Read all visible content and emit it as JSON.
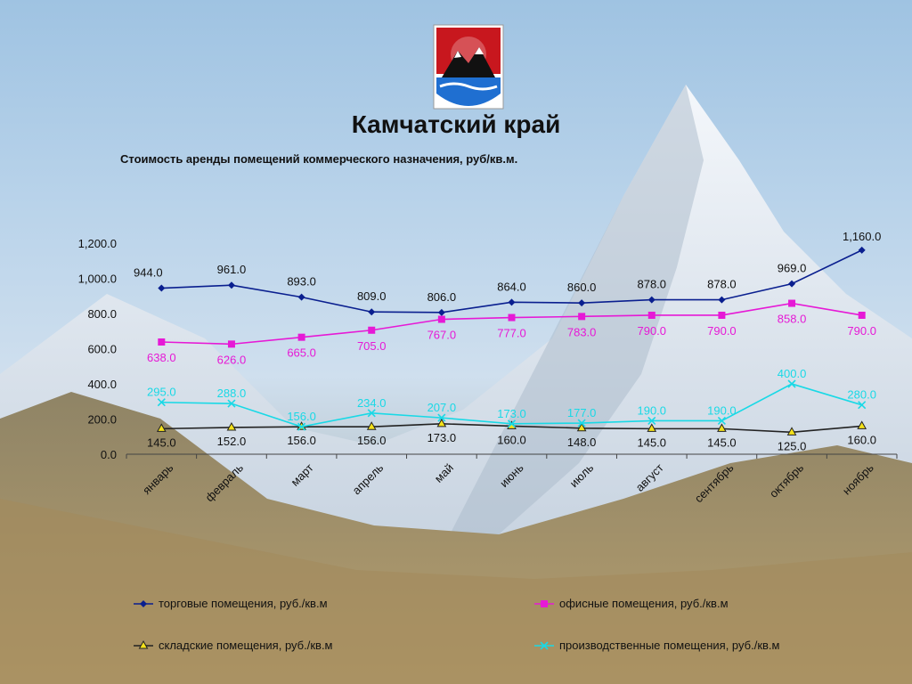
{
  "title": "Камчатский край",
  "chart_data": {
    "type": "line",
    "title": "Стоимость аренды помещений коммерческого назначения, руб/кв.м.",
    "categories": [
      "январь",
      "февраль",
      "март",
      "апрель",
      "май",
      "июнь",
      "июль",
      "август",
      "сентябрь",
      "октябрь",
      "ноябрь"
    ],
    "ylim": [
      0,
      1200
    ],
    "yticks": [
      "0.0",
      "200.0",
      "400.0",
      "600.0",
      "800.0",
      "1,000.0",
      "1,200.0"
    ],
    "grid": false,
    "legend_position": "bottom",
    "series": [
      {
        "name": "торговые помещения, руб./кв.м",
        "color": "#0a1f8f",
        "marker": "diamond",
        "values": [
          944,
          961,
          893,
          809,
          806,
          864,
          860,
          878,
          878,
          969,
          1160
        ],
        "labels": [
          "944.0",
          "961.0",
          "893.0",
          "809.0",
          "806.0",
          "864.0",
          "860.0",
          "878.0",
          "878.0",
          "969.0",
          "1,160.0"
        ]
      },
      {
        "name": "офисные помещения, руб./кв.м",
        "color": "#e619d6",
        "marker": "square",
        "values": [
          638,
          626,
          665,
          705,
          767,
          777,
          783,
          790,
          790,
          858,
          790
        ],
        "labels": [
          "638.0",
          "626.0",
          "665.0",
          "705.0",
          "767.0",
          "777.0",
          "783.0",
          "790.0",
          "790.0",
          "858.0",
          "790.0"
        ]
      },
      {
        "name": "складские помещения, руб./кв.м",
        "color": "#222222",
        "marker": "triangle",
        "values": [
          145,
          152,
          156,
          156,
          173,
          160,
          148,
          145,
          145,
          125,
          160
        ],
        "labels": [
          "145.0",
          "152.0",
          "156.0",
          "156.0",
          "173.0",
          "160.0",
          "148.0",
          "145.0",
          "145.0",
          "125.0",
          "160.0"
        ]
      },
      {
        "name": "производственные помещения, руб./кв.м",
        "color": "#19d9e6",
        "marker": "x",
        "values": [
          295,
          288,
          156,
          234,
          207,
          173,
          177,
          190,
          190,
          400,
          280
        ],
        "labels": [
          "295.0",
          "288.0",
          "156.0",
          "234.0",
          "207.0",
          "173.0",
          "177.0",
          "190.0",
          "190.0",
          "400.0",
          "280.0"
        ]
      }
    ]
  }
}
